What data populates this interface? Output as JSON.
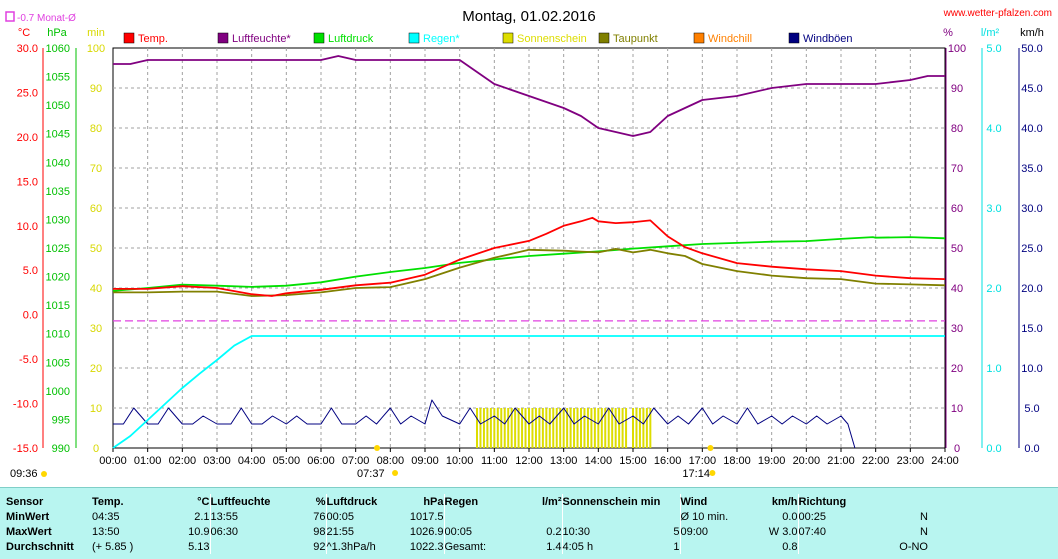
{
  "header": {
    "title": "Montag, 01.02.2016",
    "site": "www.wetter-pfalzen.com",
    "monthly_avg_label": "-0.7 Monat-Ø",
    "unit_labels_left": [
      "°C",
      "hPa",
      "min"
    ],
    "unit_labels_right": [
      "%",
      "l/m²",
      "km/h"
    ]
  },
  "time_markers": {
    "day_start": "09:36",
    "sunrise": "07:37",
    "sunset": "17:14"
  },
  "chart_data": {
    "type": "line",
    "title": "Montag, 01.02.2016",
    "x_ticks": [
      "00:00",
      "01:00",
      "02:00",
      "03:00",
      "04:00",
      "05:00",
      "06:00",
      "07:00",
      "08:00",
      "09:00",
      "10:00",
      "11:00",
      "12:00",
      "13:00",
      "14:00",
      "15:00",
      "16:00",
      "17:00",
      "18:00",
      "19:00",
      "20:00",
      "21:00",
      "22:00",
      "23:00",
      "24:00"
    ],
    "xlim": [
      0,
      24
    ],
    "axes": {
      "temp_c": {
        "ylim": [
          -15,
          30
        ],
        "ticks": [
          "30.0",
          "25.0",
          "20.0",
          "15.0",
          "10.0",
          "5.0",
          "0.0",
          "-5.0",
          "-10.0",
          "-15.0"
        ]
      },
      "pressure_hpa": {
        "ylim": [
          990,
          1060
        ],
        "ticks": [
          "1060",
          "1055",
          "1050",
          "1045",
          "1040",
          "1035",
          "1030",
          "1025",
          "1020",
          "1015",
          "1010",
          "1005",
          "1000",
          "995",
          "990"
        ]
      },
      "sunshine_min": {
        "ylim": [
          0,
          100
        ],
        "ticks": [
          "100",
          "90",
          "80",
          "70",
          "60",
          "50",
          "40",
          "30",
          "20",
          "10",
          "0"
        ]
      },
      "humidity_pct": {
        "ylim": [
          0,
          100
        ],
        "ticks": [
          "100",
          "90",
          "80",
          "70",
          "60",
          "50",
          "40",
          "30",
          "20",
          "10",
          "0"
        ]
      },
      "rain_lm2": {
        "ylim": [
          0,
          5
        ],
        "ticks": [
          "5.0",
          "4.0",
          "3.0",
          "2.0",
          "1.0",
          "0.0"
        ]
      },
      "wind_kmh": {
        "ylim": [
          0,
          50
        ],
        "ticks": [
          "50.0",
          "45.0",
          "40.0",
          "35.0",
          "30.0",
          "25.0",
          "20.0",
          "15.0",
          "10.0",
          "5.0",
          "0.0"
        ]
      }
    },
    "series": [
      {
        "name": "Temp.",
        "color": "#ff0000",
        "axis": "temp_c",
        "x": [
          0,
          1,
          2,
          3,
          4,
          4.58,
          5,
          6,
          7,
          8,
          9,
          10,
          11,
          12,
          12.5,
          13,
          13.5,
          13.83,
          14,
          14.5,
          15,
          15.5,
          16,
          16.5,
          17,
          18,
          19,
          20,
          21,
          22,
          23,
          24
        ],
        "y": [
          2.9,
          2.9,
          3.2,
          3.0,
          2.3,
          2.1,
          2.4,
          2.8,
          3.3,
          3.6,
          4.5,
          6.2,
          7.5,
          8.3,
          9.1,
          10.0,
          10.5,
          10.9,
          10.5,
          10.3,
          10.4,
          10.6,
          8.8,
          7.6,
          6.9,
          5.8,
          5.4,
          5.1,
          4.9,
          4.4,
          4.1,
          4.0
        ]
      },
      {
        "name": "Luftfeuchte*",
        "color": "#800080",
        "axis": "humidity_pct",
        "x": [
          0,
          0.5,
          1,
          2,
          3,
          4,
          5,
          6,
          6.5,
          7,
          8,
          9,
          10,
          11,
          12,
          13,
          13.5,
          14,
          14.5,
          15,
          15.5,
          16,
          17,
          18,
          19,
          20,
          21,
          22,
          23,
          23.5,
          24
        ],
        "y": [
          96,
          96,
          97,
          97,
          97,
          97,
          97,
          97,
          98,
          97,
          97,
          97,
          97,
          91,
          88,
          85,
          83,
          80,
          79,
          78,
          79,
          83,
          87,
          88,
          90,
          91,
          91,
          91,
          92,
          93,
          93
        ]
      },
      {
        "name": "Luftdruck",
        "color": "#00e000",
        "axis": "pressure_hpa",
        "x": [
          0,
          1,
          2,
          3,
          4,
          5,
          6,
          7,
          8,
          9,
          10,
          11,
          12,
          13,
          14,
          15,
          16,
          17,
          18,
          19,
          20,
          21,
          21.92,
          22,
          23,
          24
        ],
        "y": [
          1017.5,
          1018.0,
          1018.6,
          1018.4,
          1018.2,
          1018.4,
          1019.0,
          1020.0,
          1020.8,
          1021.5,
          1022.4,
          1023.0,
          1023.6,
          1024.0,
          1024.4,
          1024.9,
          1025.3,
          1025.7,
          1025.9,
          1026.1,
          1026.2,
          1026.6,
          1026.9,
          1026.8,
          1026.9,
          1026.7
        ]
      },
      {
        "name": "Regen*",
        "color": "#00ffff",
        "axis": "rain_lm2",
        "x": [
          0,
          0.5,
          1,
          1.5,
          2,
          2.5,
          3,
          3.5,
          4,
          5,
          6,
          7,
          8,
          9,
          10,
          11,
          12,
          13,
          14,
          15,
          16,
          17,
          18,
          19,
          20,
          21,
          22,
          23,
          24
        ],
        "y": [
          0.0,
          0.15,
          0.35,
          0.55,
          0.75,
          0.93,
          1.1,
          1.28,
          1.4,
          1.4,
          1.4,
          1.4,
          1.4,
          1.4,
          1.4,
          1.4,
          1.4,
          1.4,
          1.4,
          1.4,
          1.4,
          1.4,
          1.4,
          1.4,
          1.4,
          1.4,
          1.4,
          1.4,
          1.4
        ]
      },
      {
        "name": "Sonnenschein",
        "color": "#dddd00",
        "axis": "sunshine_min",
        "x": [
          10.5,
          10.6,
          10.7,
          10.8,
          10.9,
          11.0,
          11.1,
          11.2,
          11.3,
          11.4,
          11.5,
          11.6,
          11.7,
          11.8,
          11.9,
          12.0,
          12.1,
          12.2,
          12.3,
          12.4,
          12.5,
          12.6,
          12.7,
          12.8,
          12.9,
          13.0,
          13.1,
          13.2,
          13.3,
          13.4,
          13.5,
          13.6,
          13.7,
          13.8,
          13.9,
          14.0,
          14.1,
          14.2,
          14.3,
          14.4,
          14.5,
          14.6,
          14.7,
          14.8,
          15.0,
          15.1,
          15.2,
          15.3,
          15.4,
          15.5
        ],
        "y": [
          5,
          5,
          5,
          5,
          5,
          5,
          5,
          5,
          5,
          5,
          5,
          5,
          5,
          5,
          5,
          5,
          5,
          5,
          5,
          5,
          5,
          5,
          5,
          5,
          5,
          5,
          5,
          5,
          5,
          5,
          5,
          5,
          5,
          5,
          5,
          5,
          5,
          5,
          5,
          5,
          5,
          5,
          5,
          5,
          5,
          5,
          5,
          5,
          5,
          5
        ]
      },
      {
        "name": "Taupunkt",
        "color": "#808000",
        "axis": "temp_c",
        "x": [
          0,
          1,
          2,
          3,
          4,
          5,
          6,
          7,
          8,
          9,
          10,
          11,
          12,
          13,
          13.5,
          14,
          14.5,
          15,
          15.5,
          16,
          16.5,
          17,
          18,
          19,
          20,
          21,
          22,
          23,
          24
        ],
        "y": [
          2.5,
          2.5,
          2.6,
          2.6,
          2.1,
          2.2,
          2.5,
          3.0,
          3.1,
          4.0,
          5.3,
          6.4,
          7.3,
          7.2,
          7.1,
          7.0,
          7.4,
          7.0,
          7.3,
          6.9,
          6.6,
          5.7,
          4.9,
          4.4,
          4.1,
          4.0,
          3.5,
          3.4,
          3.3
        ]
      },
      {
        "name": "Windchill",
        "color": "#ff8000",
        "axis": "temp_c",
        "x": [],
        "y": []
      },
      {
        "name": "Windböen",
        "color": "#000080",
        "axis": "wind_kmh",
        "x": [
          0,
          0.3,
          0.6,
          1,
          1.3,
          1.6,
          2,
          2.3,
          2.6,
          3,
          3.4,
          3.7,
          4,
          4.3,
          4.6,
          5,
          5.3,
          5.6,
          6,
          6.3,
          6.6,
          7,
          7.3,
          7.6,
          8,
          8.3,
          8.6,
          9,
          9.2,
          9.5,
          10,
          10.3,
          10.6,
          11,
          11.3,
          11.6,
          12,
          12.3,
          12.6,
          13,
          13.3,
          13.6,
          14,
          14.3,
          14.6,
          15,
          15.3,
          15.6,
          16,
          16.3,
          16.6,
          17,
          17.3,
          17.6,
          18,
          18.3,
          18.6,
          19,
          19.3,
          19.6,
          20,
          20.3,
          20.6,
          21,
          21.2,
          21.4
        ],
        "y": [
          3,
          3,
          5,
          3,
          3,
          5,
          3,
          3,
          4,
          3,
          3,
          5,
          3,
          3,
          4,
          3,
          4,
          3,
          3,
          5,
          3,
          3,
          4,
          3,
          5,
          3,
          4,
          3,
          6,
          4,
          3,
          5,
          3,
          4,
          3,
          5,
          3,
          4,
          3,
          5,
          3,
          4,
          3,
          5,
          3,
          4,
          3,
          5,
          3,
          4,
          3,
          5,
          3,
          4,
          3,
          5,
          3,
          4,
          3,
          4,
          3,
          4,
          3,
          4,
          3,
          0
        ]
      }
    ],
    "reference_lines": [
      {
        "name": "-0.7 Monat-Ø",
        "axis": "temp_c",
        "value": -0.7,
        "color": "#e040e0",
        "style": "dashed"
      }
    ],
    "grid": true,
    "legend": "top"
  },
  "stats": {
    "headers": {
      "sensor": "Sensor",
      "temp": "Temp.",
      "temp_unit": "°C",
      "hum": "Luftfeuchte",
      "hum_unit": "%",
      "press": "Luftdruck",
      "press_unit": "hPa",
      "rain": "Regen",
      "rain_unit": "l/m²",
      "sun": "Sonnenschein min",
      "wind": "Wind",
      "wind_unit": "km/h",
      "dir": "Richtung"
    },
    "rows": [
      {
        "label": "MinWert",
        "temp_time": "04:35",
        "temp_val": "2.1",
        "hum_time": "13:55",
        "hum_val": "76",
        "press_time": "00:05",
        "press_val": "1017.5",
        "rain_time": "",
        "rain_val": "",
        "sun_time": "",
        "sun_val": "",
        "wind_time": "Ø 10 min.",
        "wind_val": "0.0",
        "dir_time": "00:25",
        "dir_val": "N"
      },
      {
        "label": "MaxWert",
        "temp_time": "13:50",
        "temp_val": "10.9",
        "hum_time": "06:30",
        "hum_val": "98",
        "press_time": "21:55",
        "press_val": "1026.9",
        "rain_time": "00:05",
        "rain_val": "0.2",
        "sun_time": "10:30",
        "sun_val": "5",
        "wind_time": "09:00",
        "wind_val": "W 3.0",
        "dir_time": "07:40",
        "dir_val": "N"
      },
      {
        "label": "Durchschnitt",
        "temp_time": "(+ 5.85 )",
        "temp_val": "5.13",
        "hum_time": "",
        "hum_val": "92",
        "press_time": "^1.3hPa/h",
        "press_val": "1022.3",
        "rain_time": "Gesamt:",
        "rain_val": "1.4",
        "sun_time": "4:05 h",
        "sun_val": "1",
        "wind_time": "",
        "wind_val": "0.8",
        "dir_time": "",
        "dir_val": "O-NO"
      }
    ]
  }
}
